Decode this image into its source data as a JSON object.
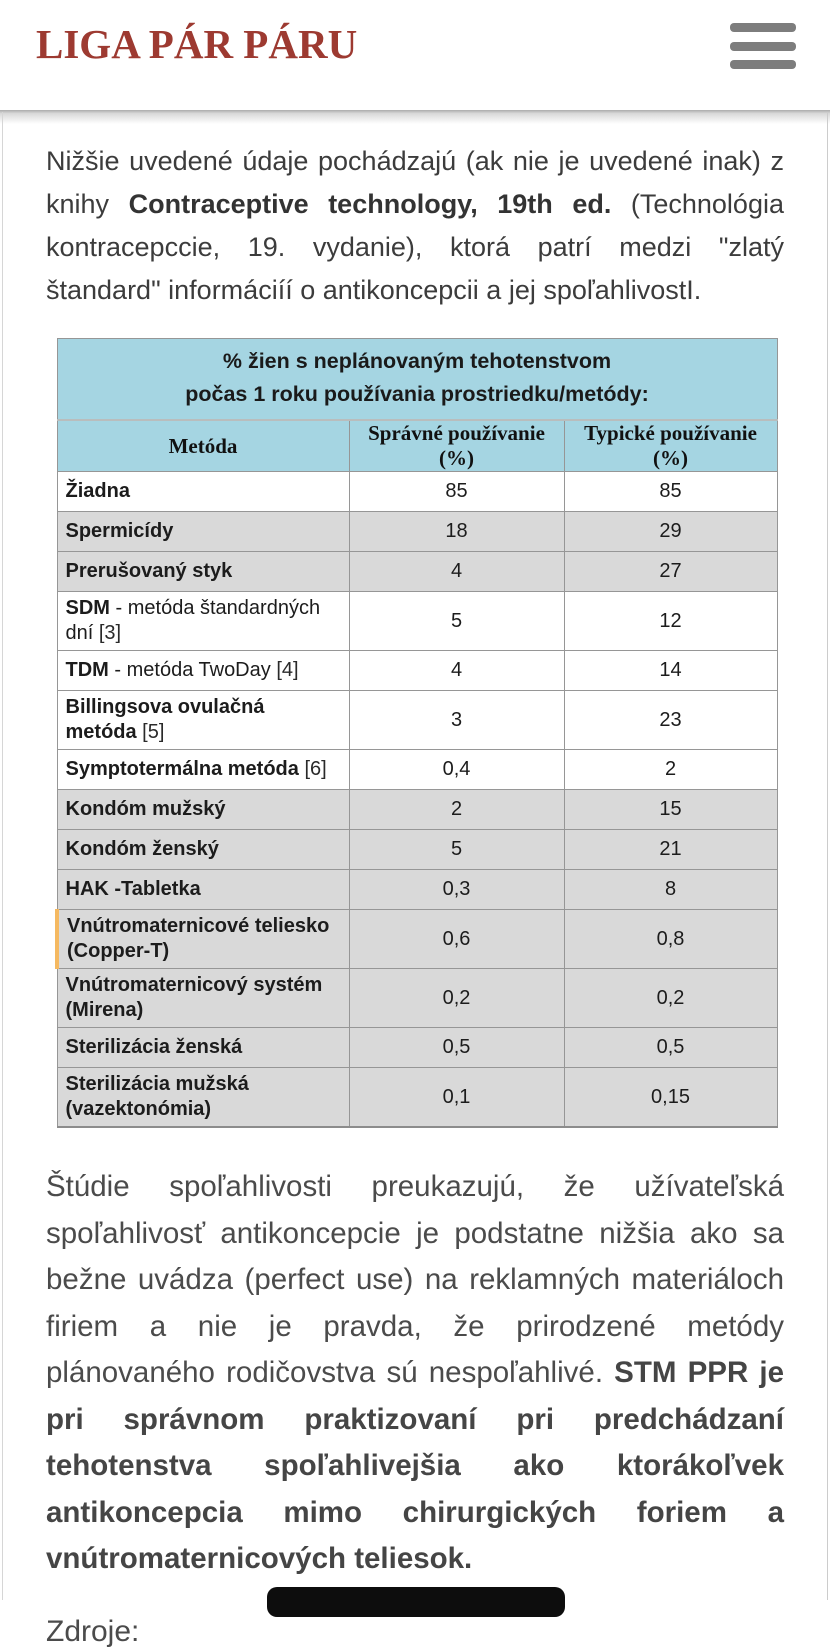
{
  "header": {
    "logo": "LIGA PÁR PÁRU",
    "menu_icon": "hamburger-icon"
  },
  "intro": {
    "before": "Nižšie uvedené údaje pochádzajú (ak nie je uvedené inak) z knihy ",
    "bold": "Contraceptive technology, 19th ed.",
    "after": " (Technológia kontracepccie, 19. vydanie), ktorá patrí medzi \"zlatý štandard\" informáciíí o antikoncepcii a jej spoľahlivostI."
  },
  "table": {
    "caption_line1": "% žien s neplánovaným tehotenstvom",
    "caption_line2": "počas 1 roku používania prostriedku/metódy:",
    "columns": [
      "Metóda",
      "Správné používanie (%)",
      "Typické používanie (%)"
    ],
    "rows": [
      {
        "name_bold": "Žiadna",
        "name_rest": "",
        "ref": "",
        "perfect": "85",
        "typical": "85",
        "shade": "white",
        "highlight": false
      },
      {
        "name_bold": "Spermicídy",
        "name_rest": "",
        "ref": "",
        "perfect": "18",
        "typical": "29",
        "shade": "gray",
        "highlight": false
      },
      {
        "name_bold": "Prerušovaný styk",
        "name_rest": "",
        "ref": "",
        "perfect": "4",
        "typical": "27",
        "shade": "gray",
        "highlight": false
      },
      {
        "name_bold": "SDM",
        "name_rest": " - metóda štandardných dní",
        "ref": "[3]",
        "perfect": "5",
        "typical": "12",
        "shade": "white",
        "highlight": false
      },
      {
        "name_bold": "TDM",
        "name_rest": " - metóda TwoDay",
        "ref": "[4]",
        "perfect": "4",
        "typical": "14",
        "shade": "white",
        "highlight": false
      },
      {
        "name_bold": "Billingsova ovulačná metóda",
        "name_rest": "",
        "ref": "[5]",
        "perfect": "3",
        "typical": "23",
        "shade": "white",
        "highlight": false
      },
      {
        "name_bold": "Symptotermálna metóda",
        "name_rest": "",
        "ref": "[6]",
        "perfect": "0,4",
        "typical": "2",
        "shade": "white",
        "highlight": false
      },
      {
        "name_bold": "Kondóm mužský",
        "name_rest": "",
        "ref": "",
        "perfect": "2",
        "typical": "15",
        "shade": "gray",
        "highlight": false
      },
      {
        "name_bold": "Kondóm ženský",
        "name_rest": "",
        "ref": "",
        "perfect": "5",
        "typical": "21",
        "shade": "gray",
        "highlight": false
      },
      {
        "name_bold": "HAK -Tabletka",
        "name_rest": "",
        "ref": "",
        "perfect": "0,3",
        "typical": "8",
        "shade": "gray",
        "highlight": false
      },
      {
        "name_bold": "Vnútromaternicové teliesko (Copper-T)",
        "name_rest": "",
        "ref": "",
        "perfect": "0,6",
        "typical": "0,8",
        "shade": "gray",
        "highlight": true
      },
      {
        "name_bold": "Vnútromaternicový systém (Mirena)",
        "name_rest": "",
        "ref": "",
        "perfect": "0,2",
        "typical": "0,2",
        "shade": "gray",
        "highlight": false
      },
      {
        "name_bold": "Sterilizácia ženská",
        "name_rest": "",
        "ref": "",
        "perfect": "0,5",
        "typical": "0,5",
        "shade": "gray",
        "highlight": false
      },
      {
        "name_bold": "Sterilizácia mužská (vazektonómia)",
        "name_rest": "",
        "ref": "",
        "perfect": "0,1",
        "typical": "0,15",
        "shade": "gray",
        "highlight": false
      }
    ]
  },
  "paragraph": {
    "normal": "Štúdie spoľahlivosti preukazujú, že užívateľská spoľahlivosť antikoncepcie je podstatne nižšia ako sa bežne uvádza (perfect use) na reklamných materiáloch firiem a nie je pravda, že prirodzené metódy plánovaného rodičovstva sú nespoľahlivé. ",
    "bold": "STM PPR je pri správnom praktizovaní pri predchádzaní tehotenstva spoľahlivejšia ako ktorákoľvek antikoncepcia mimo chirurgických foriem a vnútromaternicových teliesok."
  },
  "sources": {
    "label": "Zdroje:"
  },
  "colors": {
    "logo_red": "#9d3a31",
    "table_header_blue": "#a5d5e2",
    "row_gray": "#d9d9d9",
    "highlight_orange": "#f5b961",
    "hamburger_gray": "#7d7d7d"
  }
}
